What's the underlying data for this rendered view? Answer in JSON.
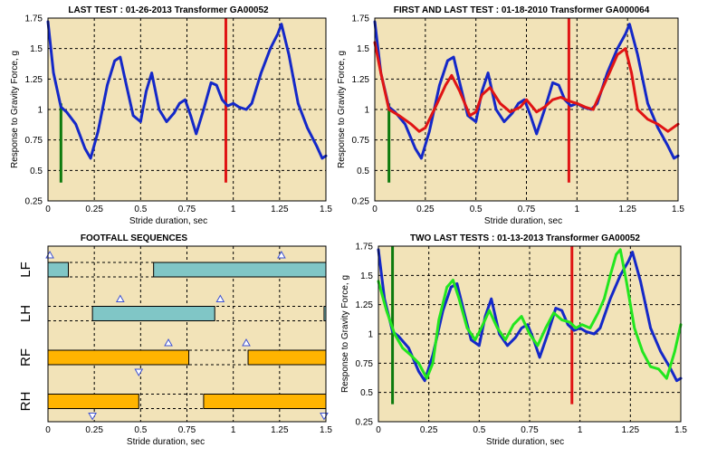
{
  "colors": {
    "plot_bg": "#f2e3b8",
    "grid": "#000000",
    "blue": "#1428c8",
    "red": "#e01414",
    "green_series": "#22e61e",
    "green_marker": "#0d7a0d",
    "teal_bar": "#80c6c6",
    "orange_bar": "#ffb400",
    "triangle": "#3c50d2"
  },
  "chart_data": [
    {
      "type": "line",
      "title": "LAST TEST : 01-26-2013 Transformer GA00052",
      "xlabel": "Stride duration, sec",
      "ylabel": "Response to Gravity Force, g",
      "xlim": [
        0,
        1.5
      ],
      "ylim": [
        0.25,
        1.75
      ],
      "xticks": [
        0,
        0.25,
        0.5,
        0.75,
        1,
        1.25,
        1.5
      ],
      "xtick_labels": [
        "0",
        "0.25",
        "0.5",
        "0.75",
        "1",
        "1.25",
        "1.5"
      ],
      "yticks": [
        0.25,
        0.5,
        0.75,
        1,
        1.25,
        1.5,
        1.75
      ],
      "ytick_labels": [
        "0.25",
        "0.5",
        "0.75",
        "1",
        "1.25",
        "1.5",
        "1.75"
      ],
      "grid": true,
      "vlines": [
        {
          "x": 0.07,
          "y": [
            0.4,
            1.05
          ],
          "color": "green_marker"
        },
        {
          "x": 0.96,
          "y": [
            0.4,
            1.75
          ],
          "color": "red"
        }
      ],
      "series": [
        {
          "color": "blue",
          "x": [
            0,
            0.03,
            0.07,
            0.1,
            0.15,
            0.2,
            0.23,
            0.27,
            0.32,
            0.36,
            0.39,
            0.42,
            0.46,
            0.5,
            0.53,
            0.56,
            0.6,
            0.64,
            0.68,
            0.71,
            0.74,
            0.77,
            0.8,
            0.84,
            0.88,
            0.91,
            0.94,
            0.97,
            1.0,
            1.03,
            1.07,
            1.1,
            1.15,
            1.2,
            1.24,
            1.26,
            1.3,
            1.35,
            1.4,
            1.45,
            1.48,
            1.5
          ],
          "y": [
            1.72,
            1.3,
            1.02,
            0.98,
            0.88,
            0.68,
            0.6,
            0.82,
            1.2,
            1.4,
            1.43,
            1.22,
            0.95,
            0.9,
            1.15,
            1.3,
            1.0,
            0.9,
            0.97,
            1.05,
            1.08,
            0.95,
            0.8,
            1.0,
            1.22,
            1.2,
            1.08,
            1.03,
            1.05,
            1.02,
            1.0,
            1.05,
            1.3,
            1.5,
            1.62,
            1.7,
            1.45,
            1.05,
            0.85,
            0.7,
            0.6,
            0.62
          ]
        }
      ]
    },
    {
      "type": "line",
      "title": "FIRST AND LAST TEST : 01-18-2010 Transformer GA000064",
      "xlabel": "Stride duration, sec",
      "ylabel": "Response to Gravity Force, g",
      "xlim": [
        0,
        1.5
      ],
      "ylim": [
        0.25,
        1.75
      ],
      "xticks": [
        0,
        0.25,
        0.5,
        0.75,
        1,
        1.25,
        1.5
      ],
      "xtick_labels": [
        "0",
        "0.25",
        "0.5",
        "0.75",
        "1",
        "1.25",
        "1.5"
      ],
      "yticks": [
        0.25,
        0.5,
        0.75,
        1,
        1.25,
        1.5,
        1.75
      ],
      "ytick_labels": [
        "0.25",
        "0.5",
        "0.75",
        "1",
        "1.25",
        "1.5",
        "1.75"
      ],
      "grid": true,
      "vlines": [
        {
          "x": 0.07,
          "y": [
            0.4,
            1.05
          ],
          "color": "green_marker"
        },
        {
          "x": 0.96,
          "y": [
            0.4,
            1.75
          ],
          "color": "red"
        }
      ],
      "series": [
        {
          "color": "blue",
          "x": [
            0,
            0.03,
            0.07,
            0.1,
            0.15,
            0.2,
            0.23,
            0.27,
            0.32,
            0.36,
            0.39,
            0.42,
            0.46,
            0.5,
            0.53,
            0.56,
            0.6,
            0.64,
            0.68,
            0.71,
            0.74,
            0.77,
            0.8,
            0.84,
            0.88,
            0.91,
            0.94,
            0.97,
            1.0,
            1.03,
            1.07,
            1.1,
            1.15,
            1.2,
            1.24,
            1.26,
            1.3,
            1.35,
            1.4,
            1.45,
            1.48,
            1.5
          ],
          "y": [
            1.72,
            1.3,
            1.02,
            0.98,
            0.88,
            0.68,
            0.6,
            0.82,
            1.2,
            1.4,
            1.43,
            1.22,
            0.95,
            0.9,
            1.15,
            1.3,
            1.0,
            0.9,
            0.97,
            1.05,
            1.08,
            0.95,
            0.8,
            1.0,
            1.22,
            1.2,
            1.08,
            1.03,
            1.05,
            1.02,
            1.0,
            1.05,
            1.3,
            1.5,
            1.62,
            1.7,
            1.45,
            1.05,
            0.85,
            0.7,
            0.6,
            0.62
          ]
        },
        {
          "color": "red",
          "x": [
            0,
            0.03,
            0.07,
            0.12,
            0.18,
            0.22,
            0.25,
            0.3,
            0.35,
            0.38,
            0.42,
            0.47,
            0.5,
            0.53,
            0.57,
            0.62,
            0.67,
            0.72,
            0.75,
            0.8,
            0.84,
            0.88,
            0.92,
            0.96,
            1.0,
            1.04,
            1.08,
            1.12,
            1.16,
            1.2,
            1.24,
            1.27,
            1.3,
            1.35,
            1.4,
            1.45,
            1.5
          ],
          "y": [
            1.55,
            1.3,
            1.0,
            0.95,
            0.88,
            0.82,
            0.85,
            1.02,
            1.2,
            1.28,
            1.15,
            0.95,
            0.98,
            1.12,
            1.18,
            1.05,
            0.98,
            1.02,
            1.08,
            0.98,
            1.02,
            1.08,
            1.1,
            1.07,
            1.05,
            1.02,
            1.0,
            1.15,
            1.3,
            1.45,
            1.5,
            1.3,
            1.0,
            0.92,
            0.88,
            0.82,
            0.88
          ]
        }
      ]
    },
    {
      "type": "timeline",
      "title": "FOOTFALL SEQUENCES",
      "xlabel": "Stride duration, sec",
      "xlim": [
        0,
        1.5
      ],
      "xticks": [
        0,
        0.25,
        0.5,
        0.75,
        1,
        1.25,
        1.5
      ],
      "xtick_labels": [
        "0",
        "0.25",
        "0.5",
        "0.75",
        "1",
        "1.25",
        "1.5"
      ],
      "grid": true,
      "legs": [
        {
          "label": "LF",
          "color": "teal_bar",
          "bars": [
            [
              0,
              0.11
            ],
            [
              0.57,
              1.5
            ]
          ],
          "triangles_up": [
            0.01,
            1.26
          ],
          "triangles_down": []
        },
        {
          "label": "LH",
          "color": "teal_bar",
          "bars": [
            [
              0.24,
              0.9
            ],
            [
              1.49,
              1.5
            ]
          ],
          "triangles_up": [
            0.39,
            0.93
          ],
          "triangles_down": []
        },
        {
          "label": "RF",
          "color": "orange_bar",
          "bars": [
            [
              0,
              0.76
            ],
            [
              1.08,
              1.5
            ]
          ],
          "triangles_up": [
            0.65,
            1.07
          ],
          "triangles_down": [
            0.49
          ]
        },
        {
          "label": "RH",
          "color": "orange_bar",
          "bars": [
            [
              0,
              0.49
            ],
            [
              0.84,
              1.5
            ]
          ],
          "triangles_up": [],
          "triangles_down": [
            0.24,
            1.49
          ]
        }
      ]
    },
    {
      "type": "line",
      "title": "TWO LAST TESTS : 01-13-2013 Transformer GA00052",
      "xlabel": "Stride duration, sec",
      "ylabel": "Response to Gravity Force, g",
      "xlim": [
        0,
        1.5
      ],
      "ylim": [
        0.25,
        1.75
      ],
      "xticks": [
        0,
        0.25,
        0.5,
        0.75,
        1,
        1.25,
        1.5
      ],
      "xtick_labels": [
        "0",
        "0.25",
        "0.5",
        "0.75",
        "1",
        "1.25",
        "1.5"
      ],
      "yticks": [
        0.25,
        0.5,
        0.75,
        1,
        1.25,
        1.5,
        1.75
      ],
      "ytick_labels": [
        "0.25",
        "0.5",
        "0.75",
        "1",
        "1.25",
        "1.5",
        "1.75"
      ],
      "grid": true,
      "vlines": [
        {
          "x": 0.07,
          "y": [
            0.4,
            1.75
          ],
          "color": "green_marker"
        },
        {
          "x": 0.96,
          "y": [
            0.4,
            1.75
          ],
          "color": "red"
        }
      ],
      "series": [
        {
          "color": "blue",
          "x": [
            0,
            0.03,
            0.07,
            0.1,
            0.15,
            0.2,
            0.23,
            0.27,
            0.32,
            0.36,
            0.39,
            0.42,
            0.46,
            0.5,
            0.53,
            0.56,
            0.6,
            0.64,
            0.68,
            0.71,
            0.74,
            0.77,
            0.8,
            0.84,
            0.88,
            0.91,
            0.94,
            0.97,
            1.0,
            1.03,
            1.07,
            1.1,
            1.15,
            1.2,
            1.24,
            1.26,
            1.3,
            1.35,
            1.4,
            1.45,
            1.48,
            1.5
          ],
          "y": [
            1.72,
            1.3,
            1.02,
            0.98,
            0.88,
            0.68,
            0.6,
            0.82,
            1.2,
            1.4,
            1.43,
            1.22,
            0.95,
            0.9,
            1.15,
            1.3,
            1.0,
            0.9,
            0.97,
            1.05,
            1.08,
            0.95,
            0.8,
            1.0,
            1.22,
            1.2,
            1.08,
            1.03,
            1.05,
            1.02,
            1.0,
            1.05,
            1.3,
            1.5,
            1.62,
            1.7,
            1.45,
            1.05,
            0.85,
            0.7,
            0.6,
            0.62
          ]
        },
        {
          "color": "green_series",
          "x": [
            0,
            0.04,
            0.08,
            0.12,
            0.16,
            0.2,
            0.24,
            0.27,
            0.3,
            0.34,
            0.37,
            0.4,
            0.44,
            0.48,
            0.51,
            0.55,
            0.59,
            0.63,
            0.67,
            0.71,
            0.75,
            0.79,
            0.83,
            0.87,
            0.91,
            0.95,
            0.98,
            1.01,
            1.05,
            1.09,
            1.12,
            1.15,
            1.18,
            1.2,
            1.23,
            1.27,
            1.31,
            1.35,
            1.39,
            1.43,
            1.47,
            1.5
          ],
          "y": [
            1.45,
            1.2,
            1.0,
            0.88,
            0.82,
            0.75,
            0.62,
            0.75,
            1.12,
            1.4,
            1.46,
            1.3,
            1.05,
            0.95,
            1.05,
            1.2,
            1.05,
            0.95,
            1.08,
            1.15,
            1.0,
            0.9,
            1.05,
            1.18,
            1.12,
            1.1,
            1.05,
            1.08,
            1.05,
            1.18,
            1.3,
            1.5,
            1.68,
            1.72,
            1.45,
            1.05,
            0.85,
            0.72,
            0.7,
            0.62,
            0.85,
            1.08
          ]
        }
      ]
    }
  ]
}
